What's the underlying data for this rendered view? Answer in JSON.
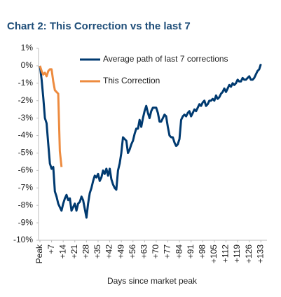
{
  "chart_data": {
    "type": "line",
    "title": "Chart 2: This Correction vs the last 7",
    "x_label": "Days since market peak",
    "xlim": [
      0,
      135
    ],
    "ylim": [
      -10,
      1
    ],
    "xticks": [
      {
        "value": 0,
        "label": "Peak"
      },
      {
        "value": 7,
        "label": "+7"
      },
      {
        "value": 14,
        "label": "+14"
      },
      {
        "value": 21,
        "label": "+21"
      },
      {
        "value": 28,
        "label": "+28"
      },
      {
        "value": 35,
        "label": "+35"
      },
      {
        "value": 42,
        "label": "+42"
      },
      {
        "value": 49,
        "label": "+49"
      },
      {
        "value": 56,
        "label": "+56"
      },
      {
        "value": 63,
        "label": "+63"
      },
      {
        "value": 70,
        "label": "+70"
      },
      {
        "value": 77,
        "label": "+77"
      },
      {
        "value": 84,
        "label": "+84"
      },
      {
        "value": 91,
        "label": "+91"
      },
      {
        "value": 98,
        "label": "+98"
      },
      {
        "value": 105,
        "label": "+105"
      },
      {
        "value": 112,
        "label": "+112"
      },
      {
        "value": 119,
        "label": "+119"
      },
      {
        "value": 126,
        "label": "+126"
      },
      {
        "value": 133,
        "label": "+133"
      }
    ],
    "yticks": [
      {
        "value": 1,
        "label": "1%"
      },
      {
        "value": 0,
        "label": "0%"
      },
      {
        "value": -1,
        "label": "-1%"
      },
      {
        "value": -2,
        "label": "-2%"
      },
      {
        "value": -3,
        "label": "-3%"
      },
      {
        "value": -4,
        "label": "-4%"
      },
      {
        "value": -5,
        "label": "-5%"
      },
      {
        "value": -6,
        "label": "-6%"
      },
      {
        "value": -7,
        "label": "-7%"
      },
      {
        "value": -8,
        "label": "-8%"
      },
      {
        "value": -9,
        "label": "-9%"
      },
      {
        "value": -10,
        "label": "-10%"
      }
    ],
    "grid": false,
    "series": [
      {
        "name": "Average path of last 7 corrections",
        "color": "#003a70",
        "x": [
          0,
          1,
          2,
          3,
          4,
          5,
          6,
          7,
          8,
          9,
          10,
          11,
          12,
          13,
          14,
          15,
          16,
          17,
          18,
          19,
          20,
          21,
          22,
          23,
          24,
          25,
          26,
          27,
          28,
          29,
          30,
          31,
          32,
          33,
          34,
          35,
          36,
          37,
          38,
          39,
          40,
          41,
          42,
          43,
          44,
          45,
          46,
          47,
          48,
          49,
          50,
          51,
          52,
          53,
          54,
          55,
          56,
          57,
          58,
          59,
          60,
          61,
          62,
          63,
          64,
          65,
          66,
          67,
          68,
          69,
          70,
          71,
          72,
          73,
          74,
          75,
          76,
          77,
          78,
          79,
          80,
          81,
          82,
          83,
          84,
          85,
          86,
          87,
          88,
          89,
          90,
          91,
          92,
          93,
          94,
          95,
          96,
          97,
          98,
          99,
          100,
          101,
          102,
          103,
          104,
          105,
          106,
          107,
          108,
          109,
          110,
          111,
          112,
          113,
          114,
          115,
          116,
          117,
          118,
          119,
          120,
          121,
          122,
          123,
          124,
          125,
          126,
          127,
          128,
          129,
          130,
          131,
          132,
          133
        ],
        "values": [
          0,
          -0.8,
          -1.8,
          -3.0,
          -3.3,
          -4.5,
          -5.6,
          -5.9,
          -5.8,
          -7.2,
          -7.5,
          -7.9,
          -8.1,
          -8.3,
          -7.9,
          -7.6,
          -7.4,
          -7.7,
          -7.6,
          -8.3,
          -8.1,
          -7.9,
          -8.3,
          -7.9,
          -7.8,
          -7.5,
          -7.7,
          -8.2,
          -8.7,
          -7.9,
          -7.3,
          -7.0,
          -6.6,
          -6.3,
          -6.4,
          -6.2,
          -6.6,
          -6.4,
          -6.0,
          -6.2,
          -5.9,
          -6.3,
          -5.9,
          -6.5,
          -6.8,
          -7.0,
          -7.1,
          -6.0,
          -5.6,
          -5.0,
          -4.1,
          -4.2,
          -4.3,
          -5.0,
          -4.8,
          -4.5,
          -4.3,
          -3.9,
          -3.6,
          -3.6,
          -3.1,
          -3.5,
          -3.0,
          -2.6,
          -2.3,
          -2.7,
          -3.0,
          -2.6,
          -2.4,
          -2.4,
          -2.4,
          -2.7,
          -3.2,
          -3.2,
          -3.0,
          -2.8,
          -2.9,
          -3.5,
          -4.0,
          -4.1,
          -4.1,
          -4.4,
          -4.6,
          -4.5,
          -4.2,
          -3.1,
          -2.9,
          -2.8,
          -2.9,
          -2.7,
          -2.6,
          -2.9,
          -2.7,
          -2.5,
          -2.6,
          -2.4,
          -2.2,
          -2.3,
          -2.1,
          -2.0,
          -2.3,
          -2.2,
          -2.0,
          -2.0,
          -1.9,
          -2.0,
          -1.7,
          -1.9,
          -1.8,
          -1.6,
          -1.5,
          -1.3,
          -1.5,
          -1.3,
          -1.1,
          -1.2,
          -1.0,
          -1.1,
          -1.0,
          -0.8,
          -0.9,
          -0.9,
          -0.7,
          -0.8,
          -0.8,
          -0.7,
          -0.6,
          -0.8,
          -0.8,
          -0.7,
          -0.5,
          -0.3,
          -0.2,
          0.1
        ]
      },
      {
        "name": "This Correction",
        "color": "#ed8b3f",
        "x": [
          0,
          1,
          2,
          3,
          4,
          5,
          6,
          7,
          8,
          9,
          10,
          11,
          12,
          13
        ],
        "values": [
          0,
          -0.3,
          -0.5,
          -0.4,
          -0.6,
          -0.3,
          -0.2,
          -0.2,
          -0.9,
          -1.4,
          -1.5,
          -1.6,
          -4.9,
          -5.8
        ]
      }
    ]
  }
}
